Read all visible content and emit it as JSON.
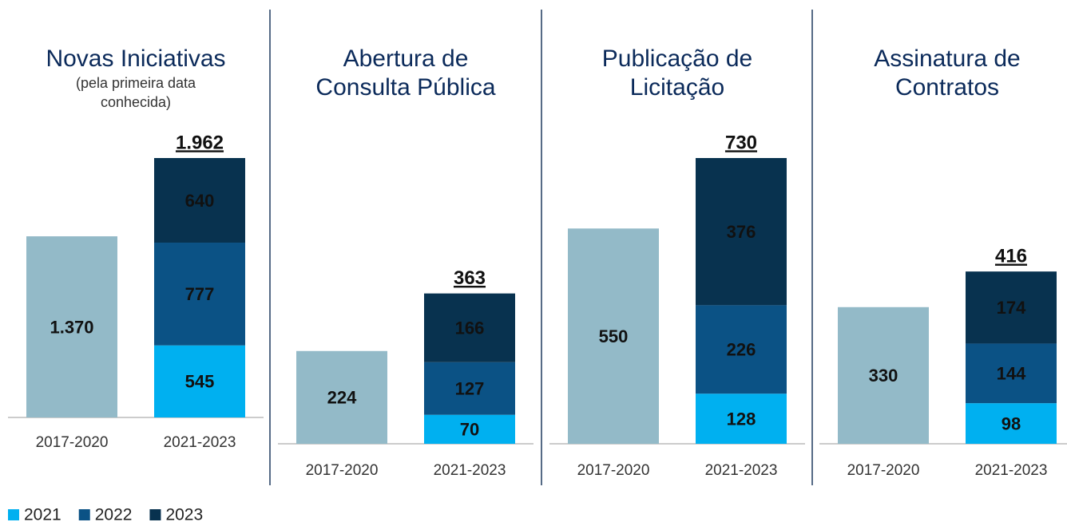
{
  "chart_data": [
    {
      "type": "bar",
      "stacked": true,
      "title": [
        "Novas Iniciativas"
      ],
      "subtitle": [
        "(pela primeira data",
        "conhecida)"
      ],
      "categories": [
        "2017-2020",
        "2021-2023"
      ],
      "series": [
        {
          "color": "#93bac8",
          "values": [
            1370,
            null
          ],
          "value_labels": [
            "1.370",
            null
          ]
        },
        {
          "name": "2021",
          "color": "#00b0f0",
          "values": [
            null,
            545
          ]
        },
        {
          "name": "2022",
          "color": "#0b5285",
          "values": [
            null,
            777
          ]
        },
        {
          "name": "2023",
          "color": "#08324f",
          "values": [
            null,
            640
          ]
        }
      ],
      "total": {
        "value": 1962,
        "label": "1.962"
      },
      "ylim": [
        0,
        1962
      ]
    },
    {
      "type": "bar",
      "stacked": true,
      "title": [
        "Abertura de",
        "Consulta Pública"
      ],
      "categories": [
        "2017-2020",
        "2021-2023"
      ],
      "series": [
        {
          "color": "#93bac8",
          "values": [
            224,
            null
          ]
        },
        {
          "name": "2021",
          "color": "#00b0f0",
          "values": [
            null,
            70
          ]
        },
        {
          "name": "2022",
          "color": "#0b5285",
          "values": [
            null,
            127
          ]
        },
        {
          "name": "2023",
          "color": "#08324f",
          "values": [
            null,
            166
          ]
        }
      ],
      "total": 363,
      "ylim": [
        0,
        690
      ]
    },
    {
      "type": "bar",
      "stacked": true,
      "title": [
        "Publicação de",
        "Licitação"
      ],
      "categories": [
        "2017-2020",
        "2021-2023"
      ],
      "series": [
        {
          "color": "#93bac8",
          "values": [
            550,
            null
          ]
        },
        {
          "name": "2021",
          "color": "#00b0f0",
          "values": [
            null,
            128
          ]
        },
        {
          "name": "2022",
          "color": "#0b5285",
          "values": [
            null,
            226
          ]
        },
        {
          "name": "2023",
          "color": "#08324f",
          "values": [
            null,
            376
          ]
        }
      ],
      "total": 730,
      "ylim": [
        0,
        730
      ]
    },
    {
      "type": "bar",
      "stacked": true,
      "title": [
        "Assinatura de",
        "Contratos"
      ],
      "categories": [
        "2017-2020",
        "2021-2023"
      ],
      "series": [
        {
          "color": "#93bac8",
          "values": [
            330,
            null
          ]
        },
        {
          "name": "2021",
          "color": "#00b0f0",
          "values": [
            null,
            98
          ]
        },
        {
          "name": "2022",
          "color": "#0b5285",
          "values": [
            null,
            144
          ]
        },
        {
          "name": "2023",
          "color": "#08324f",
          "values": [
            null,
            174
          ]
        }
      ],
      "total": 416,
      "ylim": [
        0,
        690
      ]
    }
  ]
}
